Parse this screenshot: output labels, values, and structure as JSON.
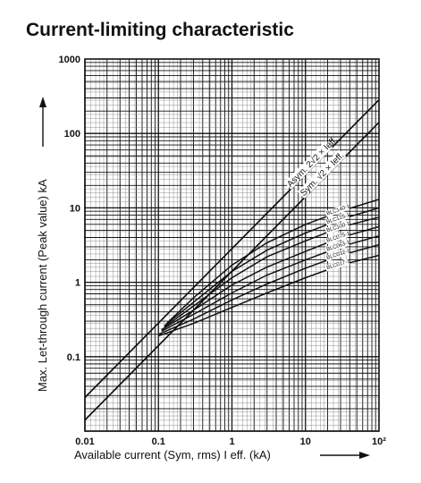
{
  "chart_data": {
    "type": "line",
    "title": "Current-limiting characteristic",
    "xlabel": "Available current (Sym, rms) I eff. (kA)",
    "ylabel": "Max. Let-through current (Peak value) kA",
    "x_scale": "log",
    "y_scale": "log",
    "xlim": [
      0.01,
      100
    ],
    "ylim": [
      0.01,
      1000
    ],
    "x_ticks": [
      "0.01",
      "0.1",
      "1",
      "10",
      "10²"
    ],
    "y_ticks": [
      "1000",
      "100",
      "10",
      "1",
      "0.1"
    ],
    "grid": true,
    "series": [
      {
        "name": "Asym. 2√2 × Ieff.",
        "x": [
          0.01,
          100
        ],
        "y": [
          0.0283,
          283
        ]
      },
      {
        "name": "Sym. √2 × Ieff.",
        "x": [
          0.01,
          100
        ],
        "y": [
          0.0141,
          141
        ]
      },
      {
        "name": "BLC140-1",
        "x": [
          0.13,
          0.3,
          1,
          3,
          10,
          30,
          100
        ],
        "y": [
          0.28,
          0.62,
          1.7,
          3.4,
          6.0,
          9.0,
          13.0
        ]
      },
      {
        "name": "BLC125-1",
        "x": [
          0.12,
          0.3,
          1,
          3,
          10,
          30,
          100
        ],
        "y": [
          0.26,
          0.54,
          1.4,
          2.7,
          4.6,
          7.0,
          10.0
        ]
      },
      {
        "name": "BLC100-1",
        "x": [
          0.12,
          0.3,
          1,
          3,
          10,
          30,
          100
        ],
        "y": [
          0.25,
          0.48,
          1.15,
          2.2,
          3.6,
          5.5,
          7.5
        ]
      },
      {
        "name": "BLC075-1",
        "x": [
          0.11,
          0.3,
          1,
          3,
          10,
          30,
          100
        ],
        "y": [
          0.23,
          0.42,
          0.92,
          1.6,
          2.6,
          4.0,
          5.6
        ]
      },
      {
        "name": "BLC063-1",
        "x": [
          0.11,
          0.3,
          1,
          3,
          10,
          30,
          100
        ],
        "y": [
          0.22,
          0.37,
          0.72,
          1.25,
          2.0,
          3.0,
          4.2
        ]
      },
      {
        "name": "BLC032-1",
        "x": [
          0.1,
          0.3,
          1,
          3,
          10,
          30,
          100
        ],
        "y": [
          0.2,
          0.32,
          0.58,
          0.95,
          1.55,
          2.3,
          3.2
        ]
      },
      {
        "name": "BLC017-1",
        "x": [
          0.1,
          0.3,
          1,
          3,
          10,
          30,
          100
        ],
        "y": [
          0.19,
          0.28,
          0.46,
          0.72,
          1.15,
          1.7,
          2.3
        ]
      }
    ]
  }
}
